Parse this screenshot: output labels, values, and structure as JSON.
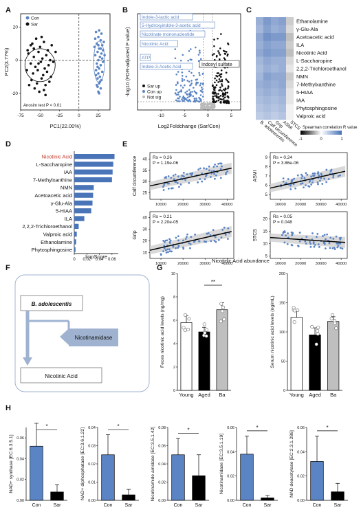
{
  "chart_data": [
    {
      "panel": "A",
      "type": "scatter",
      "xlabel": "PC1(22.00%)",
      "ylabel": "PC2(3.77%)",
      "xlim": [
        -75,
        40
      ],
      "ylim": [
        -30,
        28
      ],
      "xticks": [
        "-75",
        "-50",
        "-25",
        "0",
        "25"
      ],
      "yticks": [
        "20",
        "0",
        "-20"
      ],
      "legend": [
        "Con",
        "Sar"
      ],
      "annotation": "Anosim test P < 0.01",
      "series": [
        {
          "name": "Con",
          "color": "#5b84c4",
          "points": [
            [
              22,
              17
            ],
            [
              25,
              14
            ],
            [
              28,
              12
            ],
            [
              23,
              10
            ],
            [
              30,
              9
            ],
            [
              26,
              7
            ],
            [
              24,
              5
            ],
            [
              29,
              4
            ],
            [
              21,
              3
            ],
            [
              27,
              2
            ],
            [
              25,
              0
            ],
            [
              31,
              -1
            ],
            [
              23,
              -2
            ],
            [
              28,
              -3
            ],
            [
              26,
              -5
            ],
            [
              22,
              -6
            ],
            [
              30,
              -7
            ],
            [
              25,
              -8
            ],
            [
              27,
              -10
            ],
            [
              24,
              -11
            ],
            [
              29,
              -12
            ],
            [
              26,
              -14
            ],
            [
              23,
              -15
            ],
            [
              28,
              -17
            ],
            [
              25,
              -19
            ],
            [
              31,
              6
            ],
            [
              20,
              8
            ],
            [
              32,
              11
            ],
            [
              26,
              18
            ],
            [
              24,
              -4
            ],
            [
              30,
              1
            ],
            [
              22,
              -9
            ],
            [
              27,
              -13
            ],
            [
              21,
              13
            ],
            [
              29,
              16
            ],
            [
              25,
              9
            ],
            [
              33,
              3
            ],
            [
              28,
              7
            ],
            [
              24,
              -16
            ],
            [
              26,
              -20
            ]
          ]
        },
        {
          "name": "Sar",
          "color": "#111111",
          "points": [
            [
              -60,
              10
            ],
            [
              -55,
              13
            ],
            [
              -50,
              8
            ],
            [
              -45,
              11
            ],
            [
              -40,
              6
            ],
            [
              -35,
              9
            ],
            [
              -30,
              5
            ],
            [
              -65,
              4
            ],
            [
              -58,
              2
            ],
            [
              -52,
              5
            ],
            [
              -47,
              1
            ],
            [
              -42,
              3
            ],
            [
              -37,
              0
            ],
            [
              -62,
              -2
            ],
            [
              -56,
              -4
            ],
            [
              -49,
              -1
            ],
            [
              -44,
              -5
            ],
            [
              -39,
              -3
            ],
            [
              -33,
              -1
            ],
            [
              -67,
              -6
            ],
            [
              -59,
              -8
            ],
            [
              -53,
              -6
            ],
            [
              -46,
              -9
            ],
            [
              -41,
              -7
            ],
            [
              -36,
              -10
            ],
            [
              -61,
              -12
            ],
            [
              -54,
              -14
            ],
            [
              -48,
              -11
            ],
            [
              -43,
              -15
            ],
            [
              -38,
              -13
            ],
            [
              -57,
              -17
            ],
            [
              -51,
              -19
            ],
            [
              -45,
              -18
            ],
            [
              -64,
              -15
            ],
            [
              -66,
              6
            ],
            [
              -52,
              -2
            ],
            [
              -48,
              14
            ],
            [
              -58,
              7
            ],
            [
              -43,
              -21
            ],
            [
              -62,
              9
            ]
          ]
        }
      ]
    },
    {
      "panel": "B",
      "type": "scatter",
      "xlabel": "Log2Foldchange (Sar/Con)",
      "ylabel": "-log10 (FDR-adjusted P value)",
      "xlim": [
        -15,
        7
      ],
      "xticks": [
        "-10",
        "-5",
        "0",
        "5"
      ],
      "legend": [
        "Sar up",
        "Con up",
        "Not sig"
      ],
      "labels": [
        "Indole-3-lactic acid",
        "5-Hydroxyindole-3-acetic acid",
        "Nicotinate mononucleotide",
        "Nicotinic Acid",
        "ATP",
        "Indole-3-Acetic Acid",
        "Indoxyl sulfate"
      ]
    },
    {
      "panel": "C",
      "type": "heatmap",
      "rows": [
        "Ethanolamine",
        "γ-Glu-Ala",
        "Acetoacetic acid",
        "ILA",
        "Nicotinic Acid",
        "L-Saccharopine",
        "2,2,2-Trichloroethanol",
        "NMN",
        "7-Methylxanthine",
        "5-HIAA",
        "IAA",
        "Phytosphingosine",
        "Valproic acid"
      ],
      "columns": [
        "B. adolescentis",
        "Calf circumference",
        "Grip",
        "ASMI",
        "5TCS"
      ],
      "values": [
        [
          -0.55,
          -0.7,
          -0.6,
          -0.65,
          0.2
        ],
        [
          -0.5,
          -0.65,
          -0.55,
          -0.6,
          0.15
        ],
        [
          -0.6,
          -0.75,
          -0.7,
          -0.7,
          0.25
        ],
        [
          -0.55,
          -0.65,
          -0.6,
          -0.6,
          0.2
        ],
        [
          -0.6,
          -0.7,
          -0.65,
          -0.65,
          0.25
        ],
        [
          -0.5,
          -0.6,
          -0.55,
          -0.55,
          0.15
        ],
        [
          -0.45,
          -0.55,
          -0.5,
          -0.55,
          0.1
        ],
        [
          -0.5,
          -0.65,
          -0.6,
          -0.6,
          0.2
        ],
        [
          -0.55,
          -0.6,
          -0.55,
          -0.6,
          0.15
        ],
        [
          -0.5,
          -0.55,
          -0.5,
          -0.55,
          0.1
        ],
        [
          -0.45,
          -0.5,
          -0.45,
          -0.5,
          0.1
        ],
        [
          -0.4,
          -0.45,
          -0.4,
          -0.45,
          0.05
        ],
        [
          -0.35,
          -0.4,
          -0.35,
          -0.4,
          0.05
        ]
      ],
      "colorbar_label": "Spearman correlation R value",
      "colorbar_ticks": [
        "-1",
        "0",
        "1"
      ]
    },
    {
      "panel": "D",
      "type": "bar",
      "categories": [
        "Nicotinic Acid",
        "L-Saccharopine",
        "IAA",
        "7-Methylxanthine",
        "NMN",
        "Acetoacetic acid",
        "γ-Glu-Ala",
        "5-HIAA",
        "ILA",
        "2,2,2-Trichloroethanol",
        "Valproic acid",
        "Ethanolamine",
        "Phytosphingosine"
      ],
      "values": [
        0.064,
        0.062,
        0.061,
        0.06,
        0.031,
        0.03,
        0.029,
        0.027,
        0.016,
        0.007,
        0.004,
        0.003,
        0.002
      ],
      "xlabel": "ImpScore",
      "xticks": [
        "0",
        "0.02",
        "0.04",
        "0.06"
      ],
      "xlim": [
        0,
        0.07
      ]
    },
    {
      "panel": "E",
      "type": "scatter",
      "xlabel": "Nicotinic Acid abundance",
      "xticks": [
        "10000",
        "20000",
        "30000",
        "40000"
      ],
      "subplots": [
        {
          "ylabel": "Calf circumference",
          "rs": "Rs = 0.26",
          "p": "P = 1.19e-06",
          "yticks": [
            "40",
            "35",
            "30",
            "25"
          ],
          "ylim": [
            22,
            43
          ],
          "fit": [
            [
              5000,
              28
            ],
            [
              42000,
              36
            ]
          ]
        },
        {
          "ylabel": "ASMI",
          "rs": "Rs = 0.24",
          "p": "P = 3.86e-06",
          "yticks": [
            "9",
            "8",
            "7",
            "6",
            "5"
          ],
          "ylim": [
            4.5,
            9.5
          ],
          "fit": [
            [
              5000,
              5.7
            ],
            [
              42000,
              7.5
            ]
          ]
        },
        {
          "ylabel": "Grip",
          "rs": "Rs = 0.21",
          "p": "P = 2.20e-05",
          "yticks": [
            "40",
            "30",
            "20",
            "10"
          ],
          "ylim": [
            5,
            45
          ],
          "fit": [
            [
              5000,
              12
            ],
            [
              42000,
              28
            ]
          ]
        },
        {
          "ylabel": "5TCS",
          "rs": "Rs = 0.05",
          "p": "P = 0.048",
          "yticks": [
            "20",
            "15",
            "10",
            "5"
          ],
          "ylim": [
            4,
            23
          ],
          "fit": [
            [
              5000,
              12.5
            ],
            [
              42000,
              10.5
            ]
          ]
        }
      ]
    },
    {
      "panel": "G",
      "type": "bar",
      "categories": [
        "Young",
        "Aged",
        "Ba"
      ],
      "subplots": [
        {
          "ylabel": "Feces nicotinic acid levels (ng/mg)",
          "values": [
            5.8,
            5.0,
            6.9
          ],
          "errors": [
            0.6,
            0.4,
            0.6
          ],
          "ylim": [
            0,
            10
          ],
          "yticks": [
            "0",
            "2",
            "4",
            "6",
            "8",
            "10"
          ],
          "sig": "**"
        },
        {
          "ylabel": "Serum nicotinic acid levels (ng/mL)",
          "values": [
            125,
            95,
            118
          ],
          "errors": [
            10,
            12,
            8
          ],
          "ylim": [
            0,
            200
          ],
          "yticks": [
            "0",
            "50",
            "100",
            "150",
            "200"
          ]
        }
      ],
      "colors": [
        "#ffffff",
        "#000000",
        "#bfbfbf"
      ]
    },
    {
      "panel": "H",
      "type": "bar",
      "categories": [
        "Con",
        "Sar"
      ],
      "subplots": [
        {
          "ylabel": "NAD+ synthase [EC:6.3.5.1]",
          "values": [
            0.052,
            0.008
          ],
          "errors": [
            0.022,
            0.007
          ],
          "ylim": [
            0,
            0.07
          ],
          "yticks": [
            "0.00",
            "0.02",
            "0.04",
            "0.06"
          ]
        },
        {
          "ylabel": "NAD+ diphosphatase [EC:3.6.1.22]",
          "values": [
            0.025,
            0.003
          ],
          "errors": [
            0.011,
            0.003
          ],
          "ylim": [
            0,
            0.04
          ],
          "yticks": [
            "0.00",
            "0.01",
            "0.02",
            "0.03",
            "0.04"
          ]
        },
        {
          "ylabel": "Nicotinamide amidase [EC:3.5.1.42]",
          "values": [
            0.05,
            0.027
          ],
          "errors": [
            0.018,
            0.023
          ],
          "ylim": [
            0,
            0.08
          ],
          "yticks": [
            "0.00",
            "0.02",
            "0.04",
            "0.06",
            "0.08"
          ]
        },
        {
          "ylabel": "Nicotinamidase [EC:3.5.1.19]",
          "values": [
            0.038,
            0.002
          ],
          "errors": [
            0.015,
            0.002
          ],
          "ylim": [
            0,
            0.06
          ],
          "yticks": [
            "0.00",
            "0.02",
            "0.04",
            "0.06"
          ]
        },
        {
          "ylabel": "NAD deacetylase [EC:2.3.1.286]",
          "values": [
            0.032,
            0.007
          ],
          "errors": [
            0.021,
            0.007
          ],
          "ylim": [
            0,
            0.06
          ],
          "yticks": [
            "0.00",
            "0.02",
            "0.04",
            "0.06"
          ]
        }
      ],
      "sig": "*",
      "colors": [
        "#5b84c4",
        "#000000"
      ]
    }
  ],
  "panel_letters": [
    "A",
    "B",
    "C",
    "D",
    "E",
    "F",
    "G",
    "H"
  ],
  "panel_f": {
    "top_box": "B. adolescentis",
    "enzyme_box": "Nicotinamidase",
    "bottom_box": "Nicotinic Acid"
  },
  "colors": {
    "con": "#5b84c4",
    "sar": "#111111",
    "highlight_label": "#c0392b"
  }
}
